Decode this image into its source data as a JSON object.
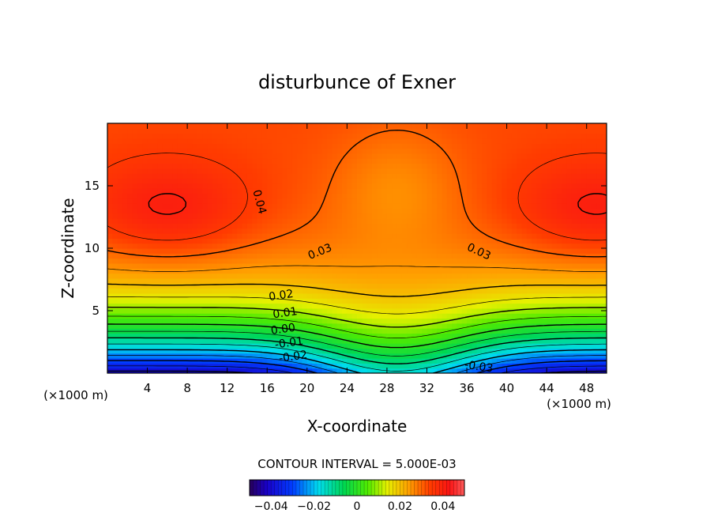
{
  "chart_data": {
    "type": "heatmap",
    "title": "disturbunce of Exner",
    "xlabel": "X-coordinate",
    "ylabel": "Z-coordinate",
    "x_unit": "(×1000 m)",
    "y_unit": "(×1000 m)",
    "xlim": [
      0,
      50
    ],
    "ylim": [
      0,
      20
    ],
    "x_ticks": [
      4,
      8,
      12,
      16,
      20,
      24,
      28,
      32,
      36,
      40,
      44,
      48
    ],
    "y_ticks": [
      5,
      10,
      15
    ],
    "contour_interval_label": "CONTOUR INTERVAL = 5.000E-03",
    "contour_labels": [
      {
        "text": "0.04",
        "x": 15.2,
        "z": 13.7,
        "angle": 75
      },
      {
        "text": "0.03",
        "x": 21.3,
        "z": 9.7,
        "angle": -22
      },
      {
        "text": "0.03",
        "x": 37.2,
        "z": 9.7,
        "angle": 25
      },
      {
        "text": "0.02",
        "x": 17.4,
        "z": 6.2,
        "angle": -8
      },
      {
        "text": "0.01",
        "x": 17.8,
        "z": 4.8,
        "angle": -8
      },
      {
        "text": "0.00",
        "x": 17.6,
        "z": 3.5,
        "angle": -8
      },
      {
        "text": "-0.01",
        "x": 18.2,
        "z": 2.4,
        "angle": -8
      },
      {
        "text": "-0.02",
        "x": 18.6,
        "z": 1.3,
        "angle": -8
      },
      {
        "text": "-0.03",
        "x": 37.2,
        "z": 0.5,
        "angle": 8
      }
    ],
    "colorbar": {
      "range": [
        -0.05,
        0.05
      ],
      "tick_values": [
        -0.04,
        -0.02,
        0,
        0.02,
        0.04
      ],
      "tick_labels": [
        "−0.04",
        "−0.02",
        "0",
        "0.02",
        "0.04"
      ]
    }
  }
}
